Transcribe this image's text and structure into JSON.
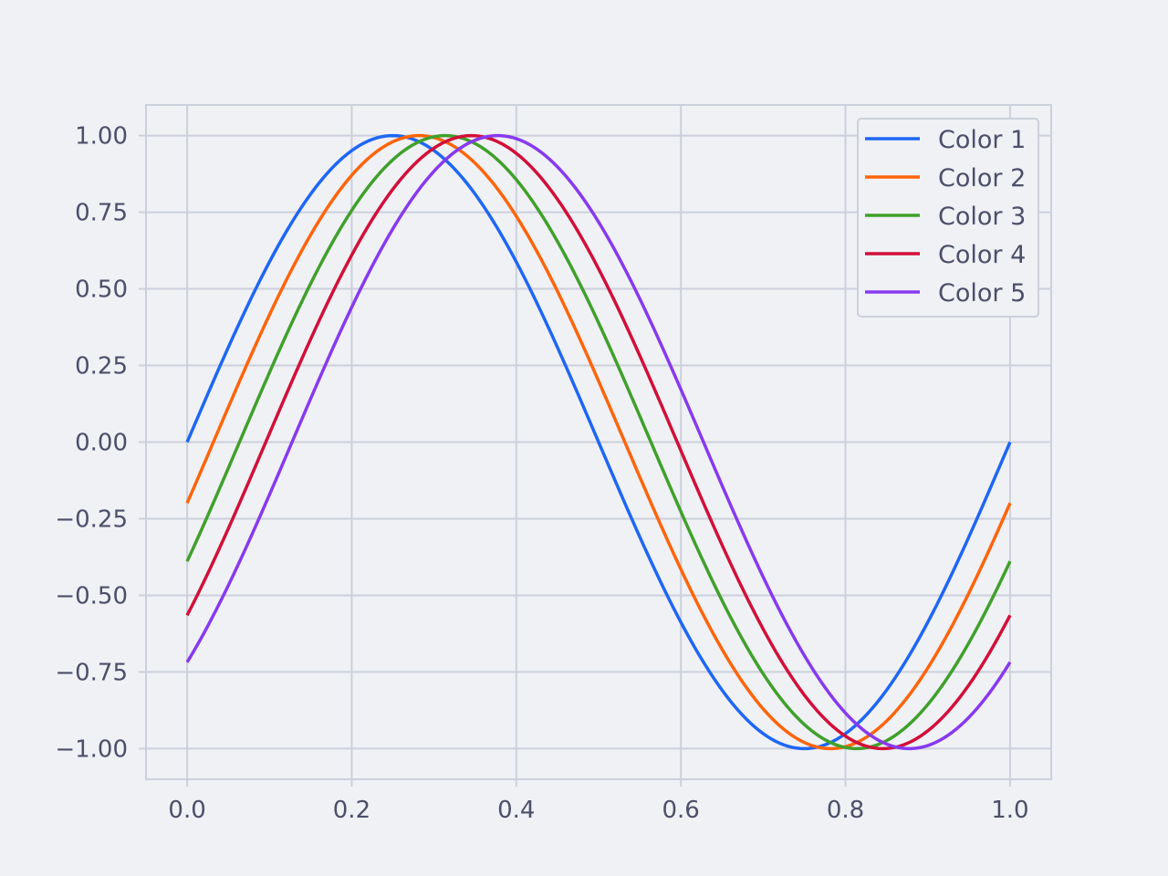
{
  "chart_data": {
    "type": "line",
    "title": "",
    "xlabel": "",
    "ylabel": "",
    "xlim": [
      -0.05,
      1.05
    ],
    "ylim": [
      -1.1,
      1.1
    ],
    "x_ticks": [
      0.0,
      0.2,
      0.4,
      0.6,
      0.8,
      1.0
    ],
    "x_tick_labels": [
      "0.0",
      "0.2",
      "0.4",
      "0.6",
      "0.8",
      "1.0"
    ],
    "y_ticks": [
      1.0,
      0.75,
      0.5,
      0.25,
      0.0,
      -0.25,
      -0.5,
      -0.75,
      -1.0
    ],
    "y_tick_labels": [
      "1.00",
      "0.75",
      "0.50",
      "0.25",
      "0.00",
      "−0.25",
      "−0.50",
      "−0.75",
      "−1.00"
    ],
    "grid": true,
    "legend_position": "top-right",
    "x": [
      0.0,
      0.05,
      0.1,
      0.15,
      0.2,
      0.25,
      0.3,
      0.35,
      0.4,
      0.45,
      0.5,
      0.55,
      0.6,
      0.65,
      0.7,
      0.75,
      0.8,
      0.85,
      0.9,
      0.95,
      1.0
    ],
    "series": [
      {
        "name": "Color 1",
        "color": "#1e66f5",
        "values": [
          0.0,
          0.309,
          0.588,
          0.809,
          0.951,
          1.0,
          0.951,
          0.809,
          0.588,
          0.309,
          0.0,
          -0.309,
          -0.588,
          -0.809,
          -0.951,
          -1.0,
          -0.951,
          -0.809,
          -0.588,
          -0.309,
          0.0
        ]
      },
      {
        "name": "Color 2",
        "color": "#fe640b",
        "values": [
          -0.199,
          0.118,
          0.416,
          0.674,
          0.866,
          0.977,
          0.998,
          0.927,
          0.768,
          0.538,
          0.259,
          0.043,
          -0.337,
          -0.587,
          -0.803,
          -0.953,
          -1.0,
          -0.935,
          -0.797,
          -0.574,
          -0.199
        ]
      },
      {
        "name": "Color 3",
        "color": "#40a02b",
        "values": [
          -0.389,
          -0.079,
          0.234,
          0.52,
          0.758,
          0.924,
          0.998,
          0.982,
          0.876,
          0.688,
          0.438,
          0.149,
          -0.156,
          -0.447,
          -0.692,
          -0.868,
          -0.986,
          -0.99,
          -0.886,
          -0.682,
          -0.389
        ]
      },
      {
        "name": "Color 4",
        "color": "#d20f39",
        "values": [
          -0.565,
          -0.277,
          0.043,
          0.351,
          0.616,
          0.838,
          0.961,
          0.999,
          0.95,
          0.817,
          0.609,
          0.341,
          0.044,
          -0.265,
          -0.546,
          -0.775,
          -0.931,
          -0.998,
          -0.965,
          -0.827,
          -0.565
        ]
      },
      {
        "name": "Color 5",
        "color": "#8839ef",
        "values": [
          -0.718,
          -0.454,
          -0.155,
          0.156,
          0.453,
          0.707,
          0.891,
          0.988,
          0.988,
          0.891,
          0.707,
          0.453,
          0.156,
          -0.155,
          -0.454,
          -0.707,
          -0.891,
          -0.988,
          -0.988,
          -0.891,
          -0.718
        ]
      }
    ]
  }
}
